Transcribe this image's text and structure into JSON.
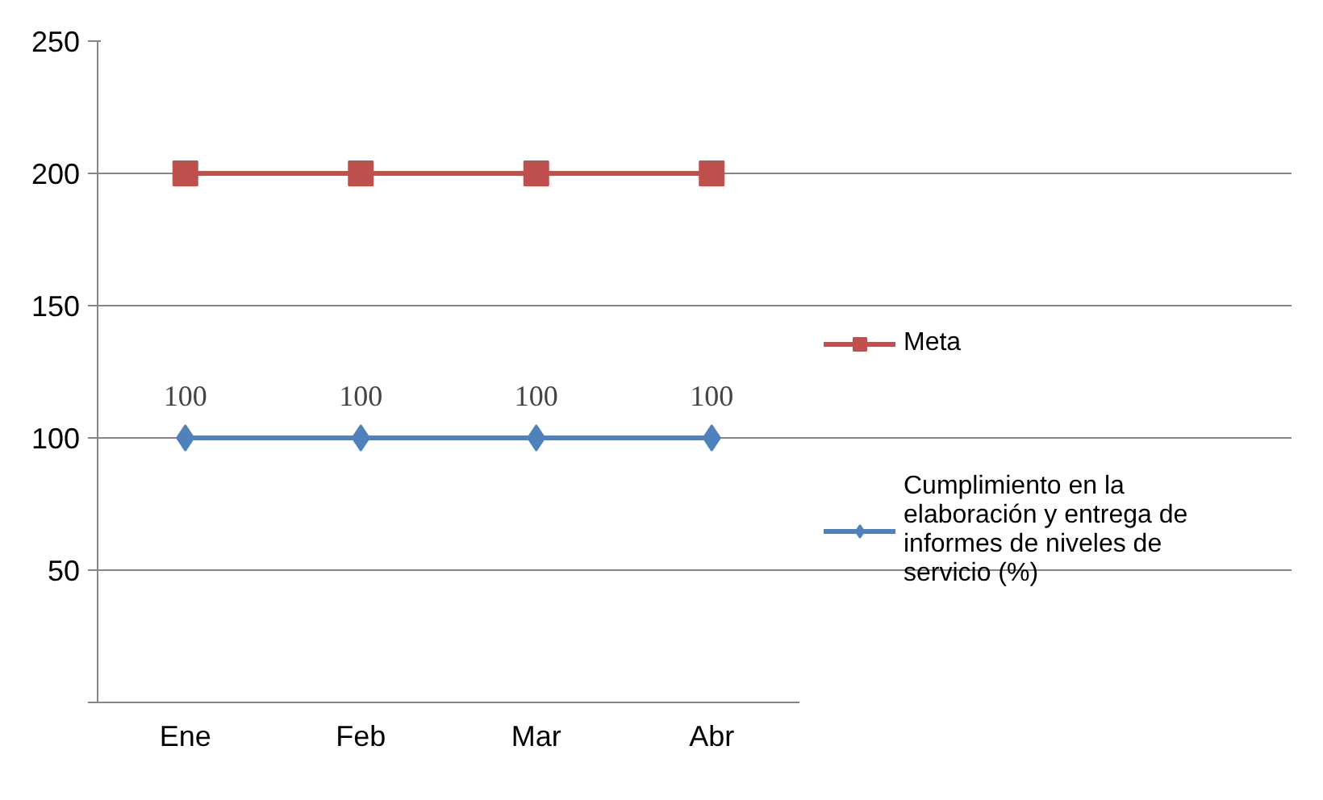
{
  "chart_data": {
    "type": "line",
    "categories": [
      "Ene",
      "Feb",
      "Mar",
      "Abr"
    ],
    "series": [
      {
        "name": "Meta",
        "color": "#c0504d",
        "marker": "square",
        "values": [
          200,
          200,
          200,
          200
        ]
      },
      {
        "name": "Cumplimiento en la elaboración y entrega de informes de niveles de servicio (%)",
        "color": "#4f81bd",
        "marker": "diamond",
        "values": [
          100,
          100,
          100,
          100
        ],
        "value_labels": [
          "100",
          "100",
          "100",
          "100"
        ]
      }
    ],
    "ylim": [
      0,
      250
    ],
    "yticks": [
      {
        "value": 0,
        "label": null
      },
      50,
      100,
      150,
      200,
      250
    ],
    "grid": "y",
    "legend": "right"
  }
}
